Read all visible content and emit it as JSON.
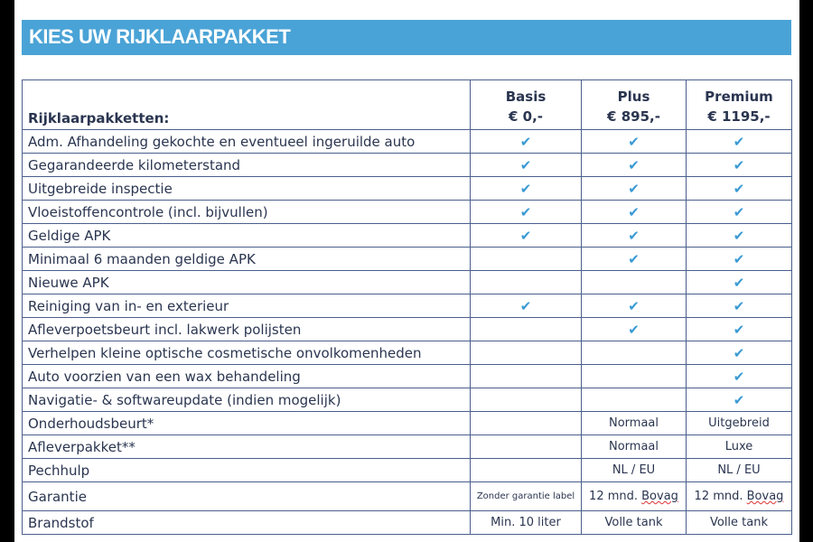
{
  "title": "KIES UW RIJKLAARPAKKET",
  "accent_color": "#4aa3d6",
  "check_color": "#3a9ad4",
  "header": {
    "label": "Rijklaarpakketten:",
    "columns": [
      {
        "name": "Basis",
        "price": "€ 0,-"
      },
      {
        "name": "Plus",
        "price": "€ 895,-"
      },
      {
        "name": "Premium",
        "price": "€ 1195,-"
      }
    ]
  },
  "check_icon": "✔",
  "rows": [
    {
      "label": "Adm. Afhandeling gekochte en eventueel ingeruilde auto",
      "basis": true,
      "plus": true,
      "premium": true
    },
    {
      "label": "Gegarandeerde kilometerstand",
      "basis": true,
      "plus": true,
      "premium": true
    },
    {
      "label": "Uitgebreide inspectie",
      "basis": true,
      "plus": true,
      "premium": true
    },
    {
      "label": "Vloeistoffencontrole (incl. bijvullen)",
      "basis": true,
      "plus": true,
      "premium": true
    },
    {
      "label": "Geldige APK",
      "basis": true,
      "plus": true,
      "premium": true
    },
    {
      "label": "Minimaal 6 maanden geldige APK",
      "basis": false,
      "plus": true,
      "premium": true
    },
    {
      "label": "Nieuwe APK",
      "basis": false,
      "plus": false,
      "premium": true
    },
    {
      "label": "Reiniging van in- en exterieur",
      "basis": true,
      "plus": true,
      "premium": true
    },
    {
      "label": "Afleverpoetsbeurt incl. lakwerk polijsten",
      "basis": false,
      "plus": true,
      "premium": true
    },
    {
      "label": "Verhelpen kleine optische cosmetische onvolkomenheden",
      "basis": false,
      "plus": false,
      "premium": true
    },
    {
      "label": "Auto voorzien van een wax behandeling",
      "basis": false,
      "plus": false,
      "premium": true
    },
    {
      "label": "Navigatie- & softwareupdate (indien mogelijk)",
      "basis": false,
      "plus": false,
      "premium": true
    },
    {
      "label": "Onderhoudsbeurt*",
      "basis": "",
      "plus": "Normaal",
      "premium": "Uitgebreid"
    },
    {
      "label": "Afleverpakket**",
      "basis": "",
      "plus": "Normaal",
      "premium": "Luxe"
    },
    {
      "label": "Pechhulp",
      "basis": "",
      "plus": "NL / EU",
      "premium": "NL / EU"
    },
    {
      "label": "Garantie",
      "basis": "Zonder garantie label",
      "plus": "12 mnd. Bovag",
      "premium": "12 mnd. Bovag"
    },
    {
      "label": "Brandstof",
      "basis": "Min. 10 liter",
      "plus": "Volle tank",
      "premium": "Volle tank"
    }
  ]
}
